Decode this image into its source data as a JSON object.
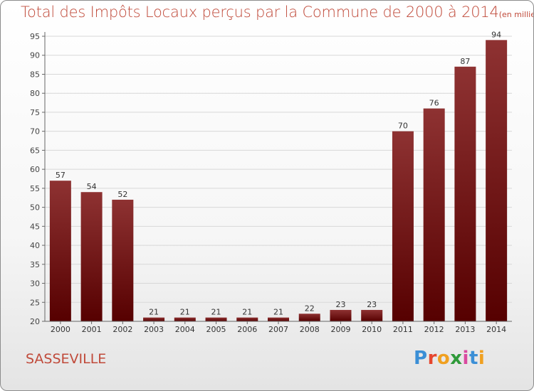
{
  "title": "Total des Impôts Locaux perçus par la Commune de 2000 à 2014",
  "unit_note": "(en milliers d'€)",
  "commune": "SASSEVILLE",
  "logo": "Proxiti",
  "colors": {
    "bar_light": "#8e3232",
    "bar_dark": "#560000",
    "title": "#c04a3a",
    "grid": "#d8d8d8",
    "axis": "#666666"
  },
  "chart_data": {
    "type": "bar",
    "categories": [
      "2000",
      "2001",
      "2002",
      "2003",
      "2004",
      "2005",
      "2006",
      "2007",
      "2008",
      "2009",
      "2010",
      "2011",
      "2012",
      "2013",
      "2014"
    ],
    "values": [
      57,
      54,
      52,
      21,
      21,
      21,
      21,
      21,
      22,
      23,
      23,
      70,
      76,
      87,
      94
    ],
    "ylim": [
      20,
      95
    ],
    "yticks": [
      20,
      25,
      30,
      35,
      40,
      45,
      50,
      55,
      60,
      65,
      70,
      75,
      80,
      85,
      90,
      95
    ],
    "grid": true,
    "data_labels": true
  }
}
